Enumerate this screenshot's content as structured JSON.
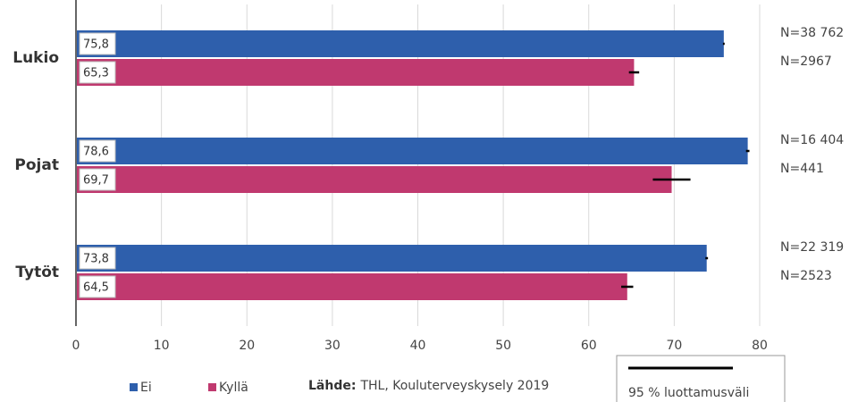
{
  "chart_data": {
    "type": "bar",
    "orientation": "horizontal",
    "categories": [
      "Lukio",
      "Pojat",
      "Tytöt"
    ],
    "series": [
      {
        "name": "Ei",
        "color": "#2e5fac",
        "values": [
          75.8,
          78.6,
          73.8
        ],
        "value_labels": [
          "75,8",
          "78,6",
          "73,8"
        ],
        "errors": [
          0.1,
          0.2,
          0.15
        ],
        "n_labels": [
          "N=38 762",
          "N=16 404",
          "N=22 319"
        ]
      },
      {
        "name": "Kyllä",
        "color": "#c0396f",
        "values": [
          65.3,
          69.7,
          64.5
        ],
        "value_labels": [
          "65,3",
          "69,7",
          "64,5"
        ],
        "errors": [
          0.6,
          2.2,
          0.7
        ],
        "n_labels": [
          "N=2967",
          "N=441",
          "N=2523"
        ]
      }
    ],
    "xlim": [
      0,
      80
    ],
    "xticks": [
      0,
      10,
      20,
      30,
      40,
      50,
      60,
      70,
      80
    ],
    "grid": true,
    "source_label": "Lähde:",
    "source": "THL, Kouluterveyskysely 2019",
    "error_legend": "95 % luottamusväli"
  }
}
